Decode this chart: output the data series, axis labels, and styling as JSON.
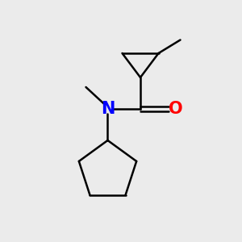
{
  "background_color": "#ebebeb",
  "bond_color": "#000000",
  "N_color": "#0000ff",
  "O_color": "#ff0000",
  "bond_width": 1.8,
  "font_size": 15,
  "fig_size": [
    3.0,
    3.0
  ],
  "dpi": 100,
  "xlim": [
    0,
    10
  ],
  "ylim": [
    0,
    10
  ]
}
